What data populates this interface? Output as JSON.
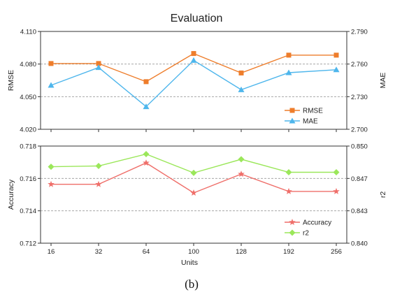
{
  "figure": {
    "title": "Evaluation",
    "caption": "(b)"
  },
  "chart_data": [
    {
      "type": "line",
      "categories": [
        "16",
        "32",
        "64",
        "100",
        "128",
        "192",
        "256"
      ],
      "xlabel": "Units",
      "ylabel": "RMSE",
      "y2label": "MAE",
      "ylim": [
        4.02,
        4.11
      ],
      "y2lim": [
        2.7,
        2.79
      ],
      "yticks": [
        "4.020",
        "4.050",
        "4.080",
        "4.110"
      ],
      "y2ticks": [
        "2.700",
        "2.730",
        "2.760",
        "2.790"
      ],
      "grid": "dashed horizontal",
      "legend_position": "bottom-right",
      "series": [
        {
          "name": "RMSE",
          "axis": "left",
          "marker": "square",
          "color": "#ee7d2b",
          "values": [
            4.0805,
            4.0805,
            4.0638,
            4.0897,
            4.0718,
            4.0882,
            4.0882
          ]
        },
        {
          "name": "MAE",
          "axis": "right",
          "marker": "triangle",
          "color": "#4eb6ec",
          "values": [
            2.7405,
            2.7568,
            2.7208,
            2.7634,
            2.7364,
            2.7521,
            2.7548
          ]
        }
      ]
    },
    {
      "type": "line",
      "categories": [
        "16",
        "32",
        "64",
        "100",
        "128",
        "192",
        "256"
      ],
      "xlabel": "Units",
      "ylabel": "Accuracy",
      "y2label": "r2",
      "ylim": [
        0.712,
        0.718
      ],
      "y2lim": [
        0.84,
        0.85
      ],
      "yticks": [
        "0.712",
        "0.714",
        "0.716",
        "0.718"
      ],
      "y2ticks": [
        "0.840",
        "0.843",
        "0.847",
        "0.850"
      ],
      "grid": "dashed horizontal",
      "legend_position": "bottom-right",
      "series": [
        {
          "name": "Accuracy",
          "axis": "left",
          "marker": "star",
          "color": "#ef6f6a",
          "values": [
            0.71564,
            0.71564,
            0.71696,
            0.71511,
            0.71627,
            0.7152,
            0.7152
          ]
        },
        {
          "name": "r2",
          "axis": "right",
          "marker": "diamond",
          "color": "#9be75a",
          "values": [
            0.84787,
            0.84795,
            0.84917,
            0.84724,
            0.84864,
            0.8473,
            0.8473
          ]
        }
      ]
    }
  ]
}
